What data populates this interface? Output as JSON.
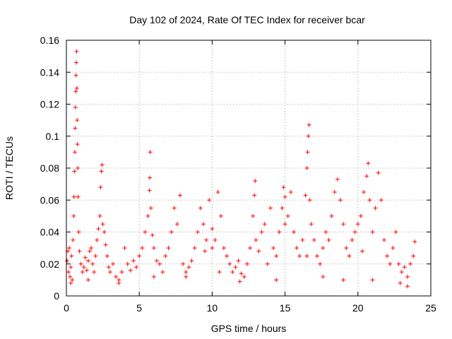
{
  "chart_data": {
    "type": "scatter",
    "title": "Day 102 of 2024, Rate Of TEC Index for receiver bcar",
    "xlabel": "GPS time / hours",
    "ylabel": "ROTI / TECUs",
    "xlim": [
      0,
      25
    ],
    "ylim": [
      0,
      0.16
    ],
    "xticks": [
      0,
      5,
      10,
      15,
      20,
      25
    ],
    "xtick_labels": [
      "0",
      "5",
      "10",
      "15",
      "20",
      "25"
    ],
    "yticks": [
      0,
      0.02,
      0.04,
      0.06,
      0.08,
      0.1,
      0.12,
      0.14,
      0.16
    ],
    "ytick_labels": [
      "0",
      "0.02",
      "0.04",
      "0.06",
      "0.08",
      "0.1",
      "0.12",
      "0.14",
      "0.16"
    ],
    "grid": true,
    "marker": "+",
    "marker_color": "#ff0000",
    "points": [
      [
        0.05,
        0.022
      ],
      [
        0.1,
        0.028
      ],
      [
        0.15,
        0.015
      ],
      [
        0.2,
        0.03
      ],
      [
        0.25,
        0.012
      ],
      [
        0.3,
        0.018
      ],
      [
        0.35,
        0.025
      ],
      [
        0.4,
        0.01
      ],
      [
        0.45,
        0.035
      ],
      [
        0.5,
        0.05
      ],
      [
        0.52,
        0.062
      ],
      [
        0.55,
        0.078
      ],
      [
        0.58,
        0.09
      ],
      [
        0.6,
        0.105
      ],
      [
        0.62,
        0.118
      ],
      [
        0.64,
        0.128
      ],
      [
        0.66,
        0.138
      ],
      [
        0.68,
        0.146
      ],
      [
        0.7,
        0.153
      ],
      [
        0.72,
        0.13
      ],
      [
        0.74,
        0.11
      ],
      [
        0.76,
        0.095
      ],
      [
        0.78,
        0.08
      ],
      [
        0.8,
        0.062
      ],
      [
        0.85,
        0.04
      ],
      [
        0.9,
        0.028
      ],
      [
        1.0,
        0.02
      ],
      [
        1.1,
        0.015
      ],
      [
        1.2,
        0.018
      ],
      [
        1.3,
        0.024
      ],
      [
        1.4,
        0.016
      ],
      [
        1.5,
        0.022
      ],
      [
        1.6,
        0.028
      ],
      [
        1.7,
        0.03
      ],
      [
        1.8,
        0.02
      ],
      [
        1.9,
        0.015
      ],
      [
        2.0,
        0.025
      ],
      [
        2.1,
        0.035
      ],
      [
        2.2,
        0.042
      ],
      [
        2.3,
        0.05
      ],
      [
        2.35,
        0.068
      ],
      [
        2.4,
        0.078
      ],
      [
        2.45,
        0.082
      ],
      [
        2.5,
        0.045
      ],
      [
        2.6,
        0.04
      ],
      [
        2.7,
        0.032
      ],
      [
        2.8,
        0.025
      ],
      [
        2.9,
        0.018
      ],
      [
        3.0,
        0.015
      ],
      [
        3.2,
        0.02
      ],
      [
        3.4,
        0.012
      ],
      [
        3.6,
        0.01
      ],
      [
        3.8,
        0.015
      ],
      [
        4.0,
        0.03
      ],
      [
        4.2,
        0.02
      ],
      [
        4.4,
        0.016
      ],
      [
        4.6,
        0.022
      ],
      [
        4.8,
        0.018
      ],
      [
        5.0,
        0.025
      ],
      [
        5.2,
        0.03
      ],
      [
        5.4,
        0.04
      ],
      [
        5.6,
        0.05
      ],
      [
        5.7,
        0.066
      ],
      [
        5.72,
        0.074
      ],
      [
        5.75,
        0.09
      ],
      [
        5.8,
        0.055
      ],
      [
        5.9,
        0.038
      ],
      [
        6.0,
        0.03
      ],
      [
        6.2,
        0.022
      ],
      [
        6.4,
        0.02
      ],
      [
        6.6,
        0.015
      ],
      [
        6.8,
        0.025
      ],
      [
        7.0,
        0.03
      ],
      [
        7.2,
        0.04
      ],
      [
        7.4,
        0.055
      ],
      [
        7.6,
        0.045
      ],
      [
        7.8,
        0.063
      ],
      [
        8.0,
        0.02
      ],
      [
        8.2,
        0.015
      ],
      [
        8.4,
        0.018
      ],
      [
        8.6,
        0.022
      ],
      [
        8.8,
        0.03
      ],
      [
        9.0,
        0.04
      ],
      [
        9.2,
        0.055
      ],
      [
        9.4,
        0.045
      ],
      [
        9.6,
        0.035
      ],
      [
        9.8,
        0.06
      ],
      [
        10.0,
        0.042
      ],
      [
        10.2,
        0.035
      ],
      [
        10.4,
        0.065
      ],
      [
        10.6,
        0.05
      ],
      [
        10.8,
        0.03
      ],
      [
        11.0,
        0.025
      ],
      [
        11.2,
        0.02
      ],
      [
        11.4,
        0.015
      ],
      [
        11.6,
        0.018
      ],
      [
        11.8,
        0.022
      ],
      [
        12.0,
        0.014
      ],
      [
        12.2,
        0.012
      ],
      [
        12.4,
        0.02
      ],
      [
        12.6,
        0.03
      ],
      [
        12.8,
        0.05
      ],
      [
        12.9,
        0.063
      ],
      [
        12.95,
        0.072
      ],
      [
        13.0,
        0.035
      ],
      [
        13.2,
        0.028
      ],
      [
        13.4,
        0.04
      ],
      [
        13.6,
        0.045
      ],
      [
        13.8,
        0.02
      ],
      [
        14.0,
        0.055
      ],
      [
        14.2,
        0.03
      ],
      [
        14.4,
        0.025
      ],
      [
        14.6,
        0.04
      ],
      [
        14.8,
        0.055
      ],
      [
        14.9,
        0.068
      ],
      [
        15.0,
        0.062
      ],
      [
        15.2,
        0.05
      ],
      [
        15.4,
        0.065
      ],
      [
        15.6,
        0.04
      ],
      [
        15.8,
        0.03
      ],
      [
        16.0,
        0.025
      ],
      [
        16.2,
        0.035
      ],
      [
        16.4,
        0.063
      ],
      [
        16.5,
        0.08
      ],
      [
        16.55,
        0.09
      ],
      [
        16.6,
        0.1
      ],
      [
        16.65,
        0.107
      ],
      [
        16.7,
        0.06
      ],
      [
        16.8,
        0.045
      ],
      [
        17.0,
        0.035
      ],
      [
        17.2,
        0.025
      ],
      [
        17.4,
        0.02
      ],
      [
        17.6,
        0.03
      ],
      [
        17.8,
        0.04
      ],
      [
        18.0,
        0.035
      ],
      [
        18.2,
        0.05
      ],
      [
        18.4,
        0.065
      ],
      [
        18.6,
        0.073
      ],
      [
        18.8,
        0.06
      ],
      [
        19.0,
        0.045
      ],
      [
        19.2,
        0.03
      ],
      [
        19.4,
        0.025
      ],
      [
        19.6,
        0.035
      ],
      [
        19.8,
        0.04
      ],
      [
        20.0,
        0.045
      ],
      [
        20.2,
        0.05
      ],
      [
        20.4,
        0.065
      ],
      [
        20.6,
        0.075
      ],
      [
        20.7,
        0.083
      ],
      [
        20.8,
        0.06
      ],
      [
        21.0,
        0.04
      ],
      [
        21.2,
        0.055
      ],
      [
        21.4,
        0.077
      ],
      [
        21.6,
        0.06
      ],
      [
        21.8,
        0.035
      ],
      [
        22.0,
        0.025
      ],
      [
        22.2,
        0.02
      ],
      [
        22.4,
        0.03
      ],
      [
        22.6,
        0.04
      ],
      [
        22.8,
        0.02
      ],
      [
        23.0,
        0.015
      ],
      [
        23.2,
        0.018
      ],
      [
        23.4,
        0.012
      ],
      [
        23.6,
        0.02
      ],
      [
        23.8,
        0.025
      ],
      [
        23.9,
        0.034
      ],
      [
        0.3,
        0.008
      ],
      [
        1.5,
        0.01
      ],
      [
        3.6,
        0.008
      ],
      [
        6.0,
        0.012
      ],
      [
        8.2,
        0.012
      ],
      [
        10.5,
        0.015
      ],
      [
        11.9,
        0.009
      ],
      [
        14.4,
        0.01
      ],
      [
        17.6,
        0.012
      ],
      [
        19.0,
        0.01
      ],
      [
        21.0,
        0.01
      ],
      [
        22.9,
        0.008
      ],
      [
        23.4,
        0.006
      ],
      [
        9.5,
        0.028
      ],
      [
        10.0,
        0.03
      ],
      [
        15.0,
        0.045
      ],
      [
        16.5,
        0.025
      ],
      [
        20.3,
        0.028
      ]
    ]
  }
}
